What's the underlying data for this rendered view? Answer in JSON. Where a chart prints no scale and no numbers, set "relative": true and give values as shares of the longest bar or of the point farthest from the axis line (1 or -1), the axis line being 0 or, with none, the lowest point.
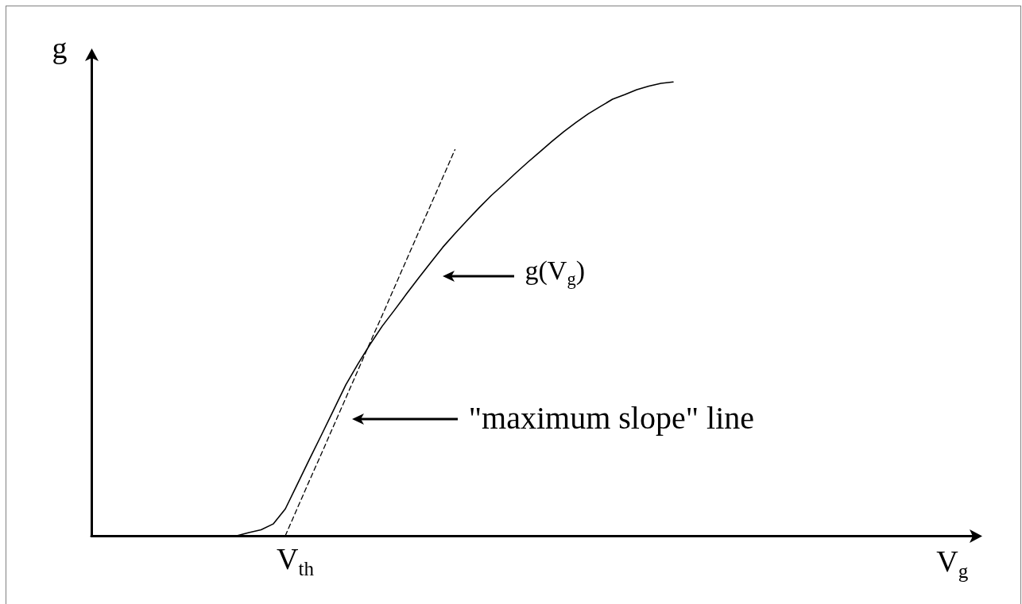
{
  "chart_data": {
    "type": "line",
    "relative": true,
    "xlabel": "V$_{g}$",
    "ylabel": "g",
    "annotations": [
      "g(V$_{g}$)",
      "\"maximum slope\" line",
      "V$_{th}$"
    ],
    "marker": "none",
    "categories": [
      null,
      null,
      null,
      null,
      null,
      null,
      null,
      null,
      null,
      null,
      null,
      null,
      null,
      null,
      null,
      null,
      null,
      null,
      null,
      null,
      null,
      null,
      null,
      null,
      null,
      null,
      null,
      null,
      null,
      null,
      null,
      null,
      null,
      null,
      null,
      null,
      null,
      null,
      null,
      null,
      null,
      null,
      null,
      null,
      null,
      null,
      null,
      null,
      null,
      null,
      null,
      null,
      null,
      null,
      null,
      null,
      null,
      null,
      null,
      null,
      null,
      null,
      null,
      null,
      null,
      null,
      null,
      null,
      null,
      null,
      null,
      null,
      null,
      null
    ],
    "series": [
      {
        "color": "#000000",
        "line_style": "solid",
        "values": [
          null,
          null,
          null,
          null,
          null,
          null,
          null,
          null,
          null,
          null,
          null,
          null,
          0,
          0.007,
          0.013,
          0.026,
          0.059,
          0.114,
          0.169,
          0.223,
          0.278,
          0.333,
          0.379,
          0.422,
          0.462,
          0.497,
          0.533,
          0.568,
          0.602,
          0.636,
          0.666,
          0.695,
          0.723,
          0.75,
          0.774,
          0.799,
          0.823,
          0.846,
          0.869,
          0.891,
          0.911,
          0.93,
          0.946,
          0.962,
          0.972,
          0.983,
          0.991,
          0.997,
          1,
          null,
          null,
          null,
          null,
          null,
          null,
          null,
          null,
          null,
          null,
          null,
          null,
          null,
          null,
          null,
          null,
          null,
          null,
          null,
          null,
          null,
          null,
          null,
          null,
          null
        ]
      },
      {
        "color": "#000000",
        "line_style": "dashed",
        "values": [
          null,
          null,
          null,
          null,
          null,
          null,
          null,
          null,
          null,
          null,
          null,
          null,
          null,
          null,
          null,
          null,
          0,
          0.061,
          0.122,
          0.182,
          0.243,
          0.304,
          0.365,
          0.426,
          0.486,
          0.547,
          0.608,
          0.669,
          0.729,
          0.79,
          0.851,
          null,
          null,
          null,
          null,
          null,
          null,
          null,
          null,
          null,
          null,
          null,
          null,
          null,
          null,
          null,
          null,
          null,
          null,
          null,
          null,
          null,
          null,
          null,
          null,
          null,
          null,
          null,
          null,
          null,
          null,
          null,
          null,
          null,
          null,
          null,
          null,
          null,
          null,
          null,
          null,
          null,
          null,
          null
        ]
      }
    ]
  }
}
